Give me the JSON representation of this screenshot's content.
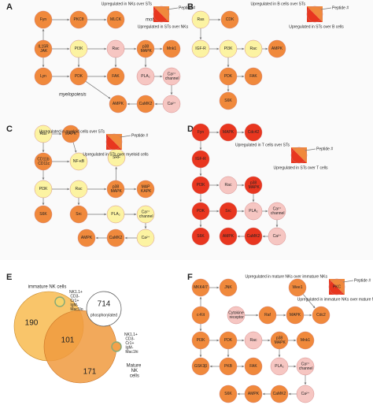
{
  "colors": {
    "orange": "#f0893c",
    "light": "#f6b46e",
    "yellow": "#fcf3a2",
    "pink": "#f6c6c2",
    "red": "#e8361f"
  },
  "panels": [
    {
      "label": "A",
      "legend": {
        "peptide": "Peptide #",
        "up1": "Upregulated in NKs over STs",
        "up2": "Upregulated in STs over NKs"
      },
      "texts": [
        "motility",
        "myelopoiesis"
      ],
      "nodes": [
        {
          "label": "Fyn",
          "color": "orange"
        },
        {
          "label": "PKCθ",
          "color": "orange"
        },
        {
          "label": "MLCK",
          "color": "orange"
        },
        {
          "label": "IL15R JAK",
          "color": "orange"
        },
        {
          "label": "PI3K",
          "color": "yellow"
        },
        {
          "label": "Rac",
          "color": "pink"
        },
        {
          "label": "p38 MAPK",
          "color": "orange"
        },
        {
          "label": "Mnk1",
          "color": "orange"
        },
        {
          "label": "Lyn",
          "color": "orange"
        },
        {
          "label": "PDK",
          "color": "orange"
        },
        {
          "label": "FAK",
          "color": "orange"
        },
        {
          "label": "PLA₂",
          "color": "pink"
        },
        {
          "label": "Ca²⁺ channel",
          "color": "pink"
        },
        {
          "label": "AMPK",
          "color": "orange"
        },
        {
          "label": "CaMK2",
          "color": "orange"
        },
        {
          "label": "Ca²⁺",
          "color": "pink"
        }
      ]
    },
    {
      "label": "B",
      "legend": {
        "peptide": "Peptide #",
        "up1": "Upregulated in B cells over STs",
        "up2": "Upregulated in STs over B cells"
      },
      "texts": [],
      "nodes": [
        {
          "label": "Ras",
          "color": "yellow"
        },
        {
          "label": "CDK",
          "color": "orange"
        },
        {
          "label": "IGF-R",
          "color": "yellow"
        },
        {
          "label": "PI3K",
          "color": "yellow"
        },
        {
          "label": "Rac",
          "color": "yellow"
        },
        {
          "label": "AMPK",
          "color": "orange"
        },
        {
          "label": "PDK",
          "color": "orange"
        },
        {
          "label": "FAK",
          "color": "orange"
        },
        {
          "label": "S6K",
          "color": "orange"
        }
      ]
    },
    {
      "label": "C",
      "legend": {
        "peptide": "Peptide #",
        "up1": "Upregulated in myeloid cells over STs",
        "up2": "Upregulated in STs over myeloid cells"
      },
      "texts": [],
      "nodes": [
        {
          "label": "Ras",
          "color": "yellow"
        },
        {
          "label": "MAPK",
          "color": "orange"
        },
        {
          "label": "CD11b CD11c",
          "color": "orange"
        },
        {
          "label": "NF-κB",
          "color": "yellow"
        },
        {
          "label": "SRF",
          "color": "yellow"
        },
        {
          "label": "PI3K",
          "color": "yellow"
        },
        {
          "label": "Rac",
          "color": "yellow"
        },
        {
          "label": "p38 MAPK",
          "color": "orange"
        },
        {
          "label": "MAP KAPK",
          "color": "orange"
        },
        {
          "label": "S6K",
          "color": "orange"
        },
        {
          "label": "Src",
          "color": "orange"
        },
        {
          "label": "PLA₂",
          "color": "yellow"
        },
        {
          "label": "Ca²⁺ channel",
          "color": "yellow"
        },
        {
          "label": "AMPK",
          "color": "orange"
        },
        {
          "label": "CaMK2",
          "color": "orange"
        },
        {
          "label": "Ca²⁺",
          "color": "yellow"
        }
      ]
    },
    {
      "label": "D",
      "legend": {
        "peptide": "Peptide #",
        "up1": "Upregulated in T cells over STs",
        "up2": "Upregulated in STs over T cells"
      },
      "texts": [],
      "nodes": [
        {
          "label": "Fyn",
          "color": "red"
        },
        {
          "label": "MAPK",
          "color": "red"
        },
        {
          "label": "Cdc42",
          "color": "red"
        },
        {
          "label": "IGF-R",
          "color": "red"
        },
        {
          "label": "PI3K",
          "color": "red"
        },
        {
          "label": "Rac",
          "color": "pink"
        },
        {
          "label": "p38 MAPK",
          "color": "red"
        },
        {
          "label": "PDK",
          "color": "red"
        },
        {
          "label": "Src",
          "color": "red"
        },
        {
          "label": "PLA₂",
          "color": "pink"
        },
        {
          "label": "Ca²⁺ channel",
          "color": "pink"
        },
        {
          "label": "S6K",
          "color": "red"
        },
        {
          "label": "AMPK",
          "color": "red"
        },
        {
          "label": "CaMK2",
          "color": "red"
        },
        {
          "label": "Ca²⁺",
          "color": "pink"
        }
      ]
    },
    {
      "label": "F",
      "legend": {
        "peptide": "Peptide #",
        "up1": "Upregulated in mature NKs over immature NKs",
        "up2": "Upregulated in immature NKs over mature NKs",
        "node": "PKC"
      },
      "texts": [],
      "nodes": [
        {
          "label": "MKK4/7",
          "color": "orange"
        },
        {
          "label": "JNK",
          "color": "orange"
        },
        {
          "label": "Wee1",
          "color": "orange"
        },
        {
          "label": "c-Kit",
          "color": "orange"
        },
        {
          "label": "Cytokine receptor",
          "color": "pink"
        },
        {
          "label": "Raf",
          "color": "orange"
        },
        {
          "label": "MAPK",
          "color": "orange"
        },
        {
          "label": "Cdc2",
          "color": "orange"
        },
        {
          "label": "PI3K",
          "color": "orange"
        },
        {
          "label": "PDK",
          "color": "orange"
        },
        {
          "label": "Rac",
          "color": "pink"
        },
        {
          "label": "p38 MAPK",
          "color": "orange"
        },
        {
          "label": "Mnk1",
          "color": "orange"
        },
        {
          "label": "GSK3β",
          "color": "orange"
        },
        {
          "label": "PKB",
          "color": "orange"
        },
        {
          "label": "FAK",
          "color": "orange"
        },
        {
          "label": "PLA₂",
          "color": "pink"
        },
        {
          "label": "Ca²⁺ channel",
          "color": "pink"
        },
        {
          "label": "S6K",
          "color": "orange"
        },
        {
          "label": "AMPK",
          "color": "orange"
        },
        {
          "label": "CaMK2",
          "color": "orange"
        },
        {
          "label": "Ca²⁺",
          "color": "pink"
        }
      ]
    }
  ],
  "venn": {
    "label": "E",
    "immature": "immature NK cells",
    "mature": "Mature NK cells",
    "only_immature": "190",
    "shared": "101",
    "only_mature": "171",
    "phospho": "714",
    "phospho_label": "phosphorylated",
    "marker_top": "NK1.1+ CD3- Cr1+ IgM- Mac1lo",
    "marker_bottom": "NK1.1+ CD3- Cr1+ IgM- Mac1hi"
  }
}
